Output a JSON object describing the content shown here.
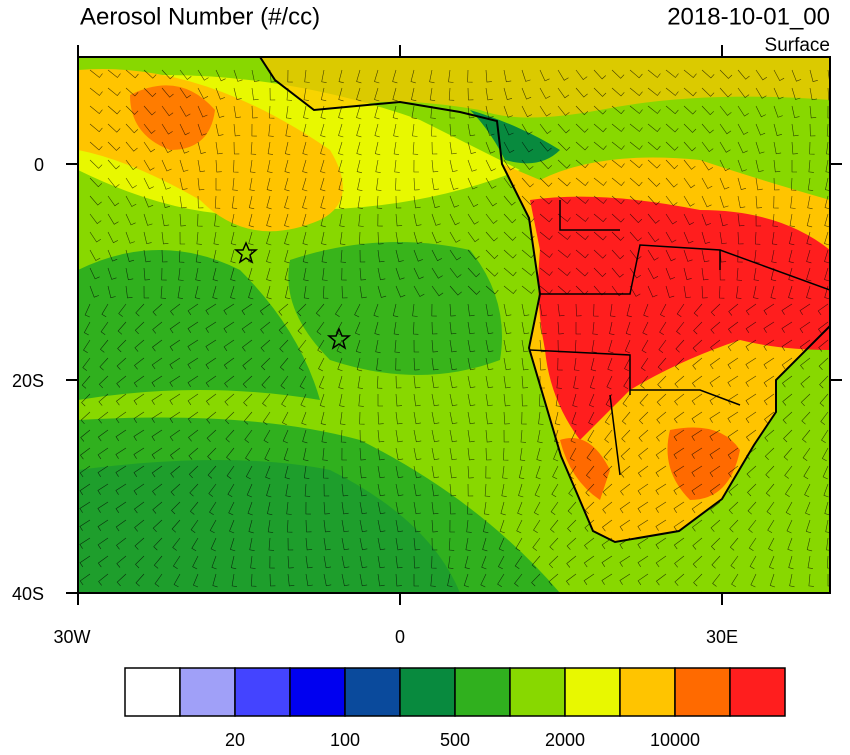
{
  "header": {
    "title": "Aerosol Number (#/cc)",
    "date": "2018-10-01_00",
    "level": "Surface"
  },
  "map": {
    "lat_labels": [
      "0",
      "20S",
      "40S"
    ],
    "lon_labels": [
      "30W",
      "0",
      "30E"
    ]
  },
  "colorbar": {
    "colors": [
      "#ffffff",
      "#a0a0f8",
      "#4444ff",
      "#0000f0",
      "#0a4a9c",
      "#088a3e",
      "#30b01e",
      "#88d800",
      "#e8f800",
      "#ffc400",
      "#ff6a00",
      "#ff1e1e"
    ],
    "labels": [
      20,
      100,
      500,
      2000,
      10000
    ]
  }
}
